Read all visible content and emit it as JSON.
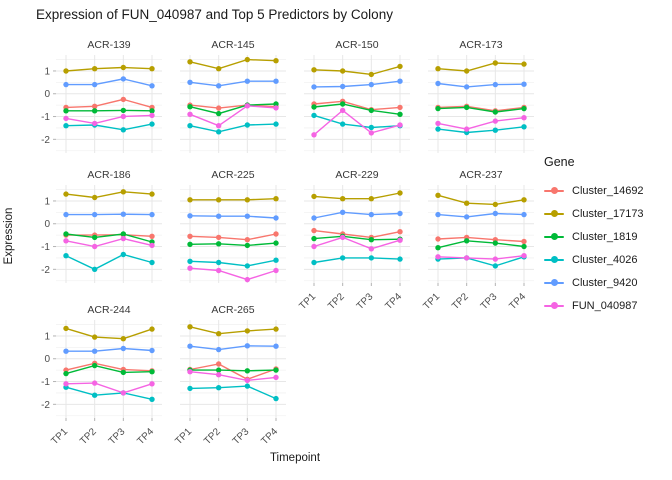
{
  "title": "Expression of FUN_040987 and Top 5 Predictors by Colony",
  "axes": {
    "x_label": "Timepoint",
    "y_label": "Expression",
    "x_ticks": [
      "TP1",
      "TP2",
      "TP3",
      "TP4"
    ],
    "y_ticks": [
      1,
      0,
      -1,
      -2
    ]
  },
  "legend": {
    "title": "Gene"
  },
  "colors": {
    "grid_major": "#e7e7e7",
    "grid_minor": "#f2f2f2",
    "axis_tick": "#b3b3b3",
    "text_dark": "#1a1a1a",
    "text_gray": "#4d4d4d"
  },
  "chart_data": {
    "type": "line",
    "facet_by": "Colony",
    "ncol": 4,
    "x": [
      "TP1",
      "TP2",
      "TP3",
      "TP4"
    ],
    "ylim": [
      -2.6,
      1.7
    ],
    "y_tick_values": [
      1,
      0,
      -1,
      -2
    ],
    "y_minor_values": [
      1.5,
      0.5,
      -0.5,
      -1.5,
      -2.5
    ],
    "grid": true,
    "legend_position": "right",
    "series_meta": [
      {
        "name": "Cluster_14692",
        "color": "#F8766D"
      },
      {
        "name": "Cluster_17173",
        "color": "#B79F00"
      },
      {
        "name": "Cluster_1819",
        "color": "#00BA38"
      },
      {
        "name": "Cluster_4026",
        "color": "#00BFC4"
      },
      {
        "name": "Cluster_9420",
        "color": "#619CFF"
      },
      {
        "name": "FUN_040987",
        "color": "#F564E3"
      }
    ],
    "facets": [
      {
        "label": "ACR-139",
        "values": [
          [
            -0.6,
            -0.55,
            -0.25,
            -0.6
          ],
          [
            1.0,
            1.1,
            1.15,
            1.1
          ],
          [
            -0.75,
            -0.75,
            -0.73,
            -0.75
          ],
          [
            -1.4,
            -1.37,
            -1.58,
            -1.33
          ],
          [
            0.4,
            0.4,
            0.65,
            0.35
          ],
          [
            -1.08,
            -1.3,
            -1.0,
            -0.95
          ]
        ]
      },
      {
        "label": "ACR-145",
        "values": [
          [
            -0.5,
            -0.63,
            -0.5,
            -0.57
          ],
          [
            1.4,
            1.1,
            1.5,
            1.45
          ],
          [
            -0.57,
            -0.87,
            -0.5,
            -0.45
          ],
          [
            -1.4,
            -1.67,
            -1.37,
            -1.33
          ],
          [
            0.5,
            0.35,
            0.55,
            0.55
          ],
          [
            -0.9,
            -1.4,
            -0.53,
            -0.62
          ]
        ]
      },
      {
        "label": "ACR-150",
        "values": [
          [
            -0.45,
            -0.33,
            -0.7,
            -0.6
          ],
          [
            1.05,
            1.0,
            0.85,
            1.2
          ],
          [
            -0.58,
            -0.45,
            -0.73,
            -0.9
          ],
          [
            -0.95,
            -1.33,
            -1.48,
            -1.4
          ],
          [
            0.3,
            0.32,
            0.4,
            0.55
          ],
          [
            -1.8,
            -0.73,
            -1.72,
            -1.37
          ]
        ]
      },
      {
        "label": "ACR-173",
        "values": [
          [
            -0.6,
            -0.55,
            -0.75,
            -0.6
          ],
          [
            1.1,
            1.0,
            1.35,
            1.3
          ],
          [
            -0.65,
            -0.6,
            -0.8,
            -0.65
          ],
          [
            -1.55,
            -1.7,
            -1.6,
            -1.45
          ],
          [
            0.45,
            0.3,
            0.4,
            0.42
          ],
          [
            -1.3,
            -1.55,
            -1.2,
            -1.05
          ]
        ]
      },
      {
        "label": "ACR-186",
        "values": [
          [
            -0.5,
            -0.5,
            -0.48,
            -0.55
          ],
          [
            1.3,
            1.15,
            1.4,
            1.3
          ],
          [
            -0.45,
            -0.6,
            -0.45,
            -0.8
          ],
          [
            -1.4,
            -2.0,
            -1.35,
            -1.7
          ],
          [
            0.4,
            0.4,
            0.42,
            0.4
          ],
          [
            -0.75,
            -1.0,
            -0.65,
            -0.95
          ]
        ]
      },
      {
        "label": "ACR-225",
        "values": [
          [
            -0.55,
            -0.6,
            -0.7,
            -0.45
          ],
          [
            1.05,
            1.05,
            1.05,
            1.1
          ],
          [
            -0.9,
            -0.88,
            -0.95,
            -0.85
          ],
          [
            -1.65,
            -1.7,
            -1.85,
            -1.6
          ],
          [
            0.35,
            0.33,
            0.33,
            0.25
          ],
          [
            -1.95,
            -2.05,
            -2.45,
            -2.05
          ]
        ]
      },
      {
        "label": "ACR-229",
        "values": [
          [
            -0.3,
            -0.45,
            -0.6,
            -0.35
          ],
          [
            1.2,
            1.1,
            1.1,
            1.35
          ],
          [
            -0.65,
            -0.55,
            -0.7,
            -0.68
          ],
          [
            -1.7,
            -1.5,
            -1.5,
            -1.55
          ],
          [
            0.25,
            0.5,
            0.4,
            0.45
          ],
          [
            -1.0,
            -0.6,
            -1.1,
            -0.72
          ]
        ]
      },
      {
        "label": "ACR-237",
        "values": [
          [
            -0.67,
            -0.6,
            -0.7,
            -0.78
          ],
          [
            1.25,
            0.9,
            0.85,
            1.05
          ],
          [
            -1.05,
            -0.75,
            -0.85,
            -1.0
          ],
          [
            -1.55,
            -1.5,
            -1.85,
            -1.45
          ],
          [
            0.4,
            0.3,
            0.45,
            0.4
          ],
          [
            -1.45,
            -1.5,
            -1.55,
            -1.4
          ]
        ]
      },
      {
        "label": "ACR-244",
        "values": [
          [
            -0.5,
            -0.2,
            -0.47,
            -0.53
          ],
          [
            1.33,
            0.95,
            0.88,
            1.3
          ],
          [
            -0.65,
            -0.3,
            -0.6,
            -0.57
          ],
          [
            -1.25,
            -1.6,
            -1.5,
            -1.78
          ],
          [
            0.33,
            0.33,
            0.45,
            0.36
          ],
          [
            -1.1,
            -1.07,
            -1.5,
            -1.1
          ]
        ]
      },
      {
        "label": "ACR-265",
        "values": [
          [
            -0.47,
            -0.23,
            -0.9,
            -0.45
          ],
          [
            1.4,
            1.1,
            1.22,
            1.3
          ],
          [
            -0.5,
            -0.5,
            -0.53,
            -0.5
          ],
          [
            -1.3,
            -1.27,
            -1.2,
            -1.75
          ],
          [
            0.55,
            0.4,
            0.57,
            0.55
          ],
          [
            -0.57,
            -0.7,
            -0.95,
            -0.82
          ]
        ]
      }
    ]
  }
}
